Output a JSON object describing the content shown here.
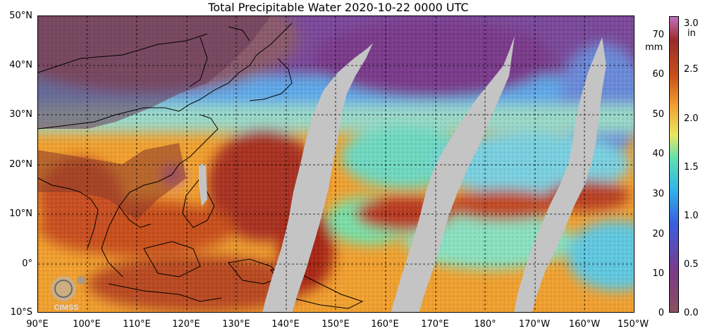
{
  "title": "Total Precipitable Water  2020-10-22 0000 UTC",
  "lat_labels": [
    "50°N",
    "40°N",
    "30°N",
    "20°N",
    "10°N",
    "0°",
    "10°S"
  ],
  "lon_labels": [
    "90°E",
    "100°E",
    "110°E",
    "120°E",
    "130°E",
    "140°E",
    "150°E",
    "160°E",
    "170°E",
    "180°",
    "170°W",
    "160°W",
    "150°W"
  ],
  "colorbar": {
    "mm_unit": "mm",
    "in_unit": "in",
    "mm_ticks": [
      "70",
      "60",
      "50",
      "40",
      "30",
      "20",
      "10",
      "0"
    ],
    "in_ticks": [
      "3.0",
      "2.5",
      "2.0",
      "1.5",
      "1.0",
      "0.5",
      "0.0"
    ],
    "colors": [
      "#8a4c5a",
      "#7a3a8a",
      "#3a5ee0",
      "#30b8e8",
      "#60e0b0",
      "#e8e860",
      "#f0a030",
      "#c8501a",
      "#9a2a2a",
      "#c070c0"
    ]
  },
  "logo_text": "CIMSS"
}
